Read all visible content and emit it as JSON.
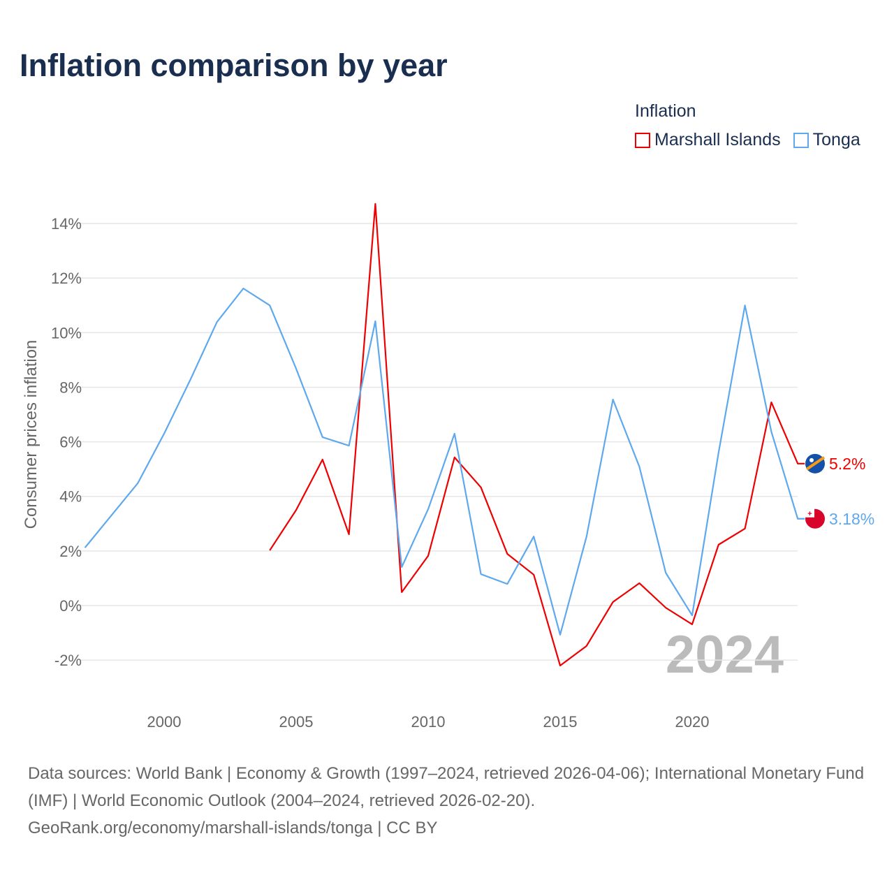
{
  "title": "Inflation comparison by year",
  "legend": {
    "title": "Inflation"
  },
  "chart_data": {
    "type": "line",
    "title": "Inflation comparison by year",
    "xlabel": "",
    "ylabel": "Consumer prices inflation",
    "xlim": [
      1997,
      2024
    ],
    "ylim": [
      -3,
      15
    ],
    "x_ticks": [
      2000,
      2005,
      2010,
      2015,
      2020
    ],
    "y_ticks": [
      -2,
      0,
      2,
      4,
      6,
      8,
      10,
      12,
      14
    ],
    "y_tick_labels": [
      "-2%",
      "0%",
      "2%",
      "4%",
      "6%",
      "8%",
      "10%",
      "12%",
      "14%"
    ],
    "grid": true,
    "legend_position": "top-right",
    "year_watermark": "2024",
    "series": [
      {
        "name": "Marshall Islands",
        "color": "#ee0000",
        "end_label": "5.2%",
        "x": [
          2004,
          2005,
          2006,
          2007,
          2008,
          2009,
          2010,
          2011,
          2012,
          2013,
          2014,
          2015,
          2016,
          2017,
          2018,
          2019,
          2020,
          2021,
          2022,
          2023,
          2024
        ],
        "values": [
          2.02,
          3.5,
          5.35,
          2.61,
          14.72,
          0.49,
          1.82,
          5.43,
          4.33,
          1.89,
          1.13,
          -2.2,
          -1.48,
          0.13,
          0.82,
          -0.08,
          -0.69,
          2.23,
          2.82,
          7.45,
          5.2
        ]
      },
      {
        "name": "Tonga",
        "color": "#5ea8ee",
        "end_label": "3.18%",
        "x": [
          1997,
          1998,
          1999,
          2000,
          2001,
          2002,
          2003,
          2004,
          2005,
          2006,
          2007,
          2008,
          2009,
          2010,
          2011,
          2012,
          2013,
          2014,
          2015,
          2016,
          2017,
          2018,
          2019,
          2020,
          2021,
          2022,
          2023,
          2024
        ],
        "values": [
          2.12,
          3.3,
          4.48,
          6.3,
          8.29,
          10.39,
          11.62,
          11.0,
          8.68,
          6.17,
          5.86,
          10.42,
          1.41,
          3.53,
          6.3,
          1.15,
          0.79,
          2.53,
          -1.07,
          2.53,
          7.55,
          5.09,
          1.2,
          -0.36,
          5.6,
          11.0,
          6.37,
          3.18
        ]
      }
    ]
  },
  "footer": {
    "sources": "Data sources: World Bank | Economy & Growth (1997–2024, retrieved 2026-04-06); International Monetary Fund (IMF) | World Economic Outlook (2004–2024, retrieved 2026-02-20).",
    "credit": "GeoRank.org/economy/marshall-islands/tonga | CC BY"
  }
}
